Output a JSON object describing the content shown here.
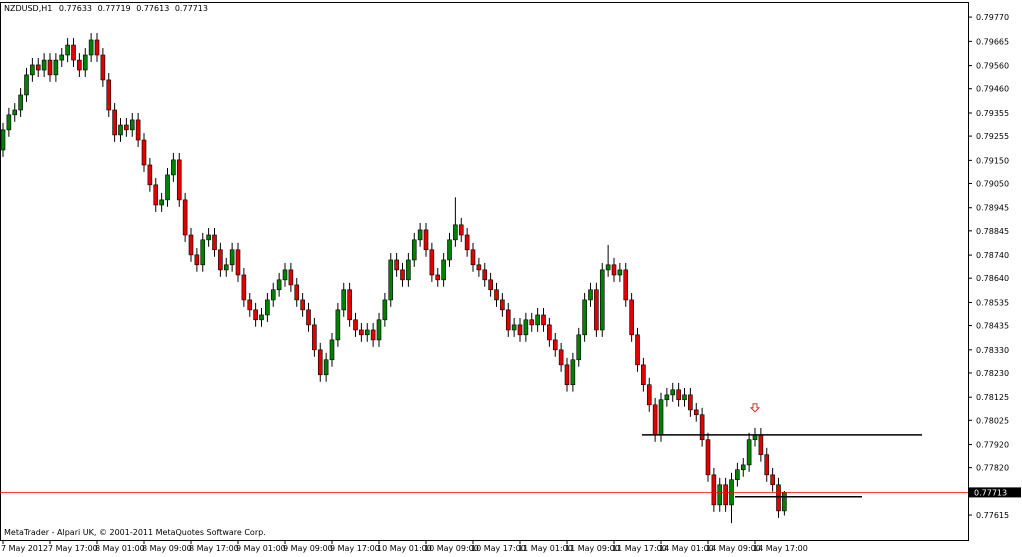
{
  "chart_data": {
    "type": "candlestick",
    "title": "NZDUSD,H1",
    "footer": "MetaTrader - Alpari UK, © 2001-2011 MetaQuotes Software Corp.",
    "up_color": "#008000",
    "down_color": "#e00000",
    "price_line_color": "#ff0000",
    "categories": [
      "7 May 2012",
      null,
      null,
      null,
      null,
      null,
      null,
      null,
      "7 May 17:00",
      null,
      null,
      null,
      null,
      null,
      null,
      null,
      "8 May 01:00",
      null,
      null,
      null,
      null,
      null,
      null,
      null,
      "8 May 09:00",
      null,
      null,
      null,
      null,
      null,
      null,
      null,
      "8 May 17:00",
      null,
      null,
      null,
      null,
      null,
      null,
      null,
      "9 May 01:00",
      null,
      null,
      null,
      null,
      null,
      null,
      null,
      "9 May 09:00",
      null,
      null,
      null,
      null,
      null,
      null,
      null,
      "9 May 17:00",
      null,
      null,
      null,
      null,
      null,
      null,
      null,
      "10 May 01:00",
      null,
      null,
      null,
      null,
      null,
      null,
      null,
      "10 May 09:00",
      null,
      null,
      null,
      null,
      null,
      null,
      null,
      "10 May 17:00",
      null,
      null,
      null,
      null,
      null,
      null,
      null,
      "11 May 01:00",
      null,
      null,
      null,
      null,
      null,
      null,
      null,
      "11 May 09:00",
      null,
      null,
      null,
      null,
      null,
      null,
      null,
      "11 May 17:00",
      null,
      null,
      null,
      null,
      null,
      null,
      null,
      "14 May 01:00",
      null,
      null,
      null,
      null,
      null,
      null,
      null,
      "14 May 09:00",
      null,
      null,
      null,
      null,
      null,
      null,
      null,
      "14 May 17:00",
      null,
      null,
      null,
      null,
      null
    ],
    "open": [
      0.79195,
      0.79282,
      0.79347,
      0.79368,
      0.79433,
      0.7952,
      0.79563,
      0.79541,
      0.79584,
      0.7952,
      0.79584,
      0.79606,
      0.79649,
      0.79584,
      0.79541,
      0.79606,
      0.79671,
      0.79606,
      0.79498,
      0.79368,
      0.7926,
      0.79303,
      0.79282,
      0.79325,
      0.79238,
      0.7913,
      0.79044,
      0.78957,
      0.78979,
      0.79087,
      0.79152,
      0.78979,
      0.78827,
      0.78741,
      0.78698,
      0.78806,
      0.78827,
      0.78763,
      0.78676,
      0.78698,
      0.78763,
      0.78654,
      0.78546,
      0.78503,
      0.7846,
      0.78481,
      0.78546,
      0.7859,
      0.78633,
      0.78676,
      0.78611,
      0.78546,
      0.78503,
      0.78438,
      0.7833,
      0.78222,
      0.78287,
      0.78373,
      0.78503,
      0.7859,
      0.7846,
      0.78416,
      0.78395,
      0.78416,
      0.78373,
      0.7846,
      0.78546,
      0.78719,
      0.78676,
      0.78633,
      0.78719,
      0.78806,
      0.78849,
      0.78763,
      0.78654,
      0.78633,
      0.78719,
      0.78806,
      0.78871,
      0.78827,
      0.78763,
      0.78698,
      0.78676,
      0.78633,
      0.7859,
      0.78546,
      0.78503,
      0.78416,
      0.78438,
      0.78395,
      0.7846,
      0.78438,
      0.78481,
      0.78438,
      0.78373,
      0.7833,
      0.78265,
      0.78179,
      0.78287,
      0.78395,
      0.78546,
      0.7859,
      0.78416,
      0.78676,
      0.78698,
      0.78654,
      0.78676,
      0.78546,
      0.78395,
      0.78265,
      0.78179,
      0.78092,
      0.77962,
      0.78114,
      0.78135,
      0.78157,
      0.78114,
      0.78135,
      0.7807,
      0.78049,
      0.77941,
      0.77789,
      0.77659,
      0.77746,
      0.77659,
      0.77768,
      0.77811,
      0.77832,
      0.77941,
      0.77962,
      0.77876,
      0.77789,
      0.77746,
      0.77633
    ],
    "high": [
      0.79312,
      0.79377,
      0.79398,
      0.79463,
      0.7955,
      0.79593,
      0.79593,
      0.79614,
      0.79614,
      0.79614,
      0.79636,
      0.79679,
      0.79679,
      0.79614,
      0.79636,
      0.79701,
      0.79701,
      0.79636,
      0.79528,
      0.79398,
      0.79333,
      0.79333,
      0.79355,
      0.79355,
      0.79268,
      0.7916,
      0.79074,
      0.79009,
      0.79117,
      0.79182,
      0.79182,
      0.79009,
      0.78857,
      0.78771,
      0.78836,
      0.78857,
      0.78857,
      0.78793,
      0.78728,
      0.78793,
      0.78793,
      0.78684,
      0.78576,
      0.78533,
      0.78511,
      0.78576,
      0.7862,
      0.78663,
      0.78706,
      0.78706,
      0.78641,
      0.78576,
      0.78533,
      0.78468,
      0.7836,
      0.78317,
      0.78403,
      0.78533,
      0.7862,
      0.7862,
      0.7849,
      0.78446,
      0.78446,
      0.78446,
      0.7849,
      0.78576,
      0.78749,
      0.78749,
      0.78706,
      0.78749,
      0.78836,
      0.78879,
      0.78879,
      0.78793,
      0.78684,
      0.78749,
      0.78836,
      0.7899,
      0.78901,
      0.78857,
      0.78793,
      0.78728,
      0.78706,
      0.78663,
      0.7862,
      0.78576,
      0.78533,
      0.78468,
      0.78468,
      0.7849,
      0.7849,
      0.78511,
      0.78511,
      0.78468,
      0.78403,
      0.7836,
      0.78295,
      0.78317,
      0.78425,
      0.78576,
      0.7862,
      0.7862,
      0.78706,
      0.78784,
      0.78728,
      0.78706,
      0.78706,
      0.78576,
      0.78425,
      0.78295,
      0.78209,
      0.78122,
      0.78144,
      0.78165,
      0.78187,
      0.78187,
      0.78165,
      0.78165,
      0.781,
      0.78079,
      0.77971,
      0.77819,
      0.77776,
      0.77776,
      0.77798,
      0.77841,
      0.77862,
      0.77971,
      0.77992,
      0.77992,
      0.77906,
      0.77819,
      0.77776,
      0.77719
    ],
    "low": [
      0.79165,
      0.79252,
      0.79317,
      0.79338,
      0.79403,
      0.7949,
      0.79511,
      0.79511,
      0.7949,
      0.7949,
      0.79554,
      0.79576,
      0.79554,
      0.79511,
      0.79511,
      0.79576,
      0.79576,
      0.79468,
      0.79338,
      0.7923,
      0.7923,
      0.79252,
      0.79252,
      0.79208,
      0.791,
      0.79014,
      0.78927,
      0.78927,
      0.78949,
      0.79057,
      0.78949,
      0.78797,
      0.78711,
      0.78668,
      0.78668,
      0.78776,
      0.78733,
      0.78646,
      0.78646,
      0.78668,
      0.78624,
      0.78516,
      0.78473,
      0.7843,
      0.7843,
      0.78451,
      0.78516,
      0.7856,
      0.78603,
      0.78581,
      0.78516,
      0.78473,
      0.78408,
      0.783,
      0.78192,
      0.78192,
      0.78257,
      0.78343,
      0.78473,
      0.7843,
      0.78386,
      0.78365,
      0.78365,
      0.78343,
      0.78343,
      0.7843,
      0.78516,
      0.78646,
      0.78603,
      0.78603,
      0.78689,
      0.78776,
      0.78733,
      0.78624,
      0.78603,
      0.78603,
      0.78689,
      0.78776,
      0.78797,
      0.78733,
      0.78668,
      0.78646,
      0.78603,
      0.7856,
      0.78516,
      0.78473,
      0.78386,
      0.78386,
      0.78365,
      0.78365,
      0.78408,
      0.78408,
      0.78408,
      0.78343,
      0.783,
      0.78235,
      0.78149,
      0.78149,
      0.78257,
      0.78365,
      0.78516,
      0.78386,
      0.78386,
      0.78646,
      0.78624,
      0.78624,
      0.78516,
      0.78365,
      0.78235,
      0.78149,
      0.78062,
      0.77932,
      0.77932,
      0.78084,
      0.78105,
      0.78084,
      0.78084,
      0.7804,
      0.78019,
      0.77911,
      0.77759,
      0.77629,
      0.77629,
      0.77629,
      0.7758,
      0.77738,
      0.77781,
      0.77802,
      0.77911,
      0.77846,
      0.77759,
      0.77716,
      0.77603,
      0.77613
    ],
    "close": [
      0.79282,
      0.79347,
      0.79368,
      0.79433,
      0.7952,
      0.79563,
      0.79541,
      0.79584,
      0.7952,
      0.79584,
      0.79606,
      0.79649,
      0.79584,
      0.79541,
      0.79606,
      0.79671,
      0.79606,
      0.79498,
      0.79368,
      0.7926,
      0.79303,
      0.79282,
      0.79325,
      0.79238,
      0.7913,
      0.79044,
      0.78957,
      0.78979,
      0.79087,
      0.79152,
      0.78979,
      0.78827,
      0.78741,
      0.78698,
      0.78806,
      0.78827,
      0.78763,
      0.78676,
      0.78698,
      0.78763,
      0.78654,
      0.78546,
      0.78503,
      0.7846,
      0.78481,
      0.78546,
      0.7859,
      0.78633,
      0.78676,
      0.78611,
      0.78546,
      0.78503,
      0.78438,
      0.7833,
      0.78222,
      0.78287,
      0.78373,
      0.78503,
      0.7859,
      0.7846,
      0.78416,
      0.78395,
      0.78416,
      0.78373,
      0.7846,
      0.78546,
      0.78719,
      0.78676,
      0.78633,
      0.78719,
      0.78806,
      0.78849,
      0.78763,
      0.78654,
      0.78633,
      0.78719,
      0.78806,
      0.78871,
      0.78827,
      0.78763,
      0.78698,
      0.78676,
      0.78633,
      0.7859,
      0.78546,
      0.78503,
      0.78416,
      0.78438,
      0.78395,
      0.7846,
      0.78438,
      0.78481,
      0.78438,
      0.78373,
      0.7833,
      0.78265,
      0.78179,
      0.78287,
      0.78395,
      0.78546,
      0.7859,
      0.78416,
      0.78676,
      0.78698,
      0.78654,
      0.78676,
      0.78546,
      0.78395,
      0.78265,
      0.78179,
      0.78092,
      0.77962,
      0.78114,
      0.78135,
      0.78157,
      0.78114,
      0.78135,
      0.7807,
      0.78049,
      0.77941,
      0.77789,
      0.77659,
      0.77746,
      0.77659,
      0.77768,
      0.77811,
      0.77832,
      0.77941,
      0.77962,
      0.77876,
      0.77789,
      0.77746,
      0.77633,
      0.77713
    ],
    "hlines": [
      0.77962,
      0.77694
    ],
    "arrow": {
      "index": 128,
      "value": 0.78079
    },
    "ylim": [
      0.77507,
      0.79844
    ],
    "yticks": [
      {
        "value": 0.7977,
        "label": "0.79770"
      },
      {
        "value": 0.79665,
        "label": "0.79665"
      },
      {
        "value": 0.7956,
        "label": "0.79560"
      },
      {
        "value": 0.7946,
        "label": "0.79460"
      },
      {
        "value": 0.79355,
        "label": "0.79355"
      },
      {
        "value": 0.79255,
        "label": "0.79255"
      },
      {
        "value": 0.7915,
        "label": "0.79150"
      },
      {
        "value": 0.7905,
        "label": "0.79050"
      },
      {
        "value": 0.78945,
        "label": "0.78945"
      },
      {
        "value": 0.78845,
        "label": "0.78845"
      },
      {
        "value": 0.7874,
        "label": "0.78740"
      },
      {
        "value": 0.7864,
        "label": "0.78640"
      },
      {
        "value": 0.78535,
        "label": "0.78535"
      },
      {
        "value": 0.78435,
        "label": "0.78435"
      },
      {
        "value": 0.7833,
        "label": "0.78330"
      },
      {
        "value": 0.7823,
        "label": "0.78230"
      },
      {
        "value": 0.78125,
        "label": "0.78125"
      },
      {
        "value": 0.78025,
        "label": "0.78025"
      },
      {
        "value": 0.7792,
        "label": "0.77920"
      },
      {
        "value": 0.7782,
        "label": "0.77820"
      },
      {
        "value": 0.77715,
        "label": "0.77715"
      },
      {
        "value": 0.77615,
        "label": "0.77615"
      }
    ]
  }
}
